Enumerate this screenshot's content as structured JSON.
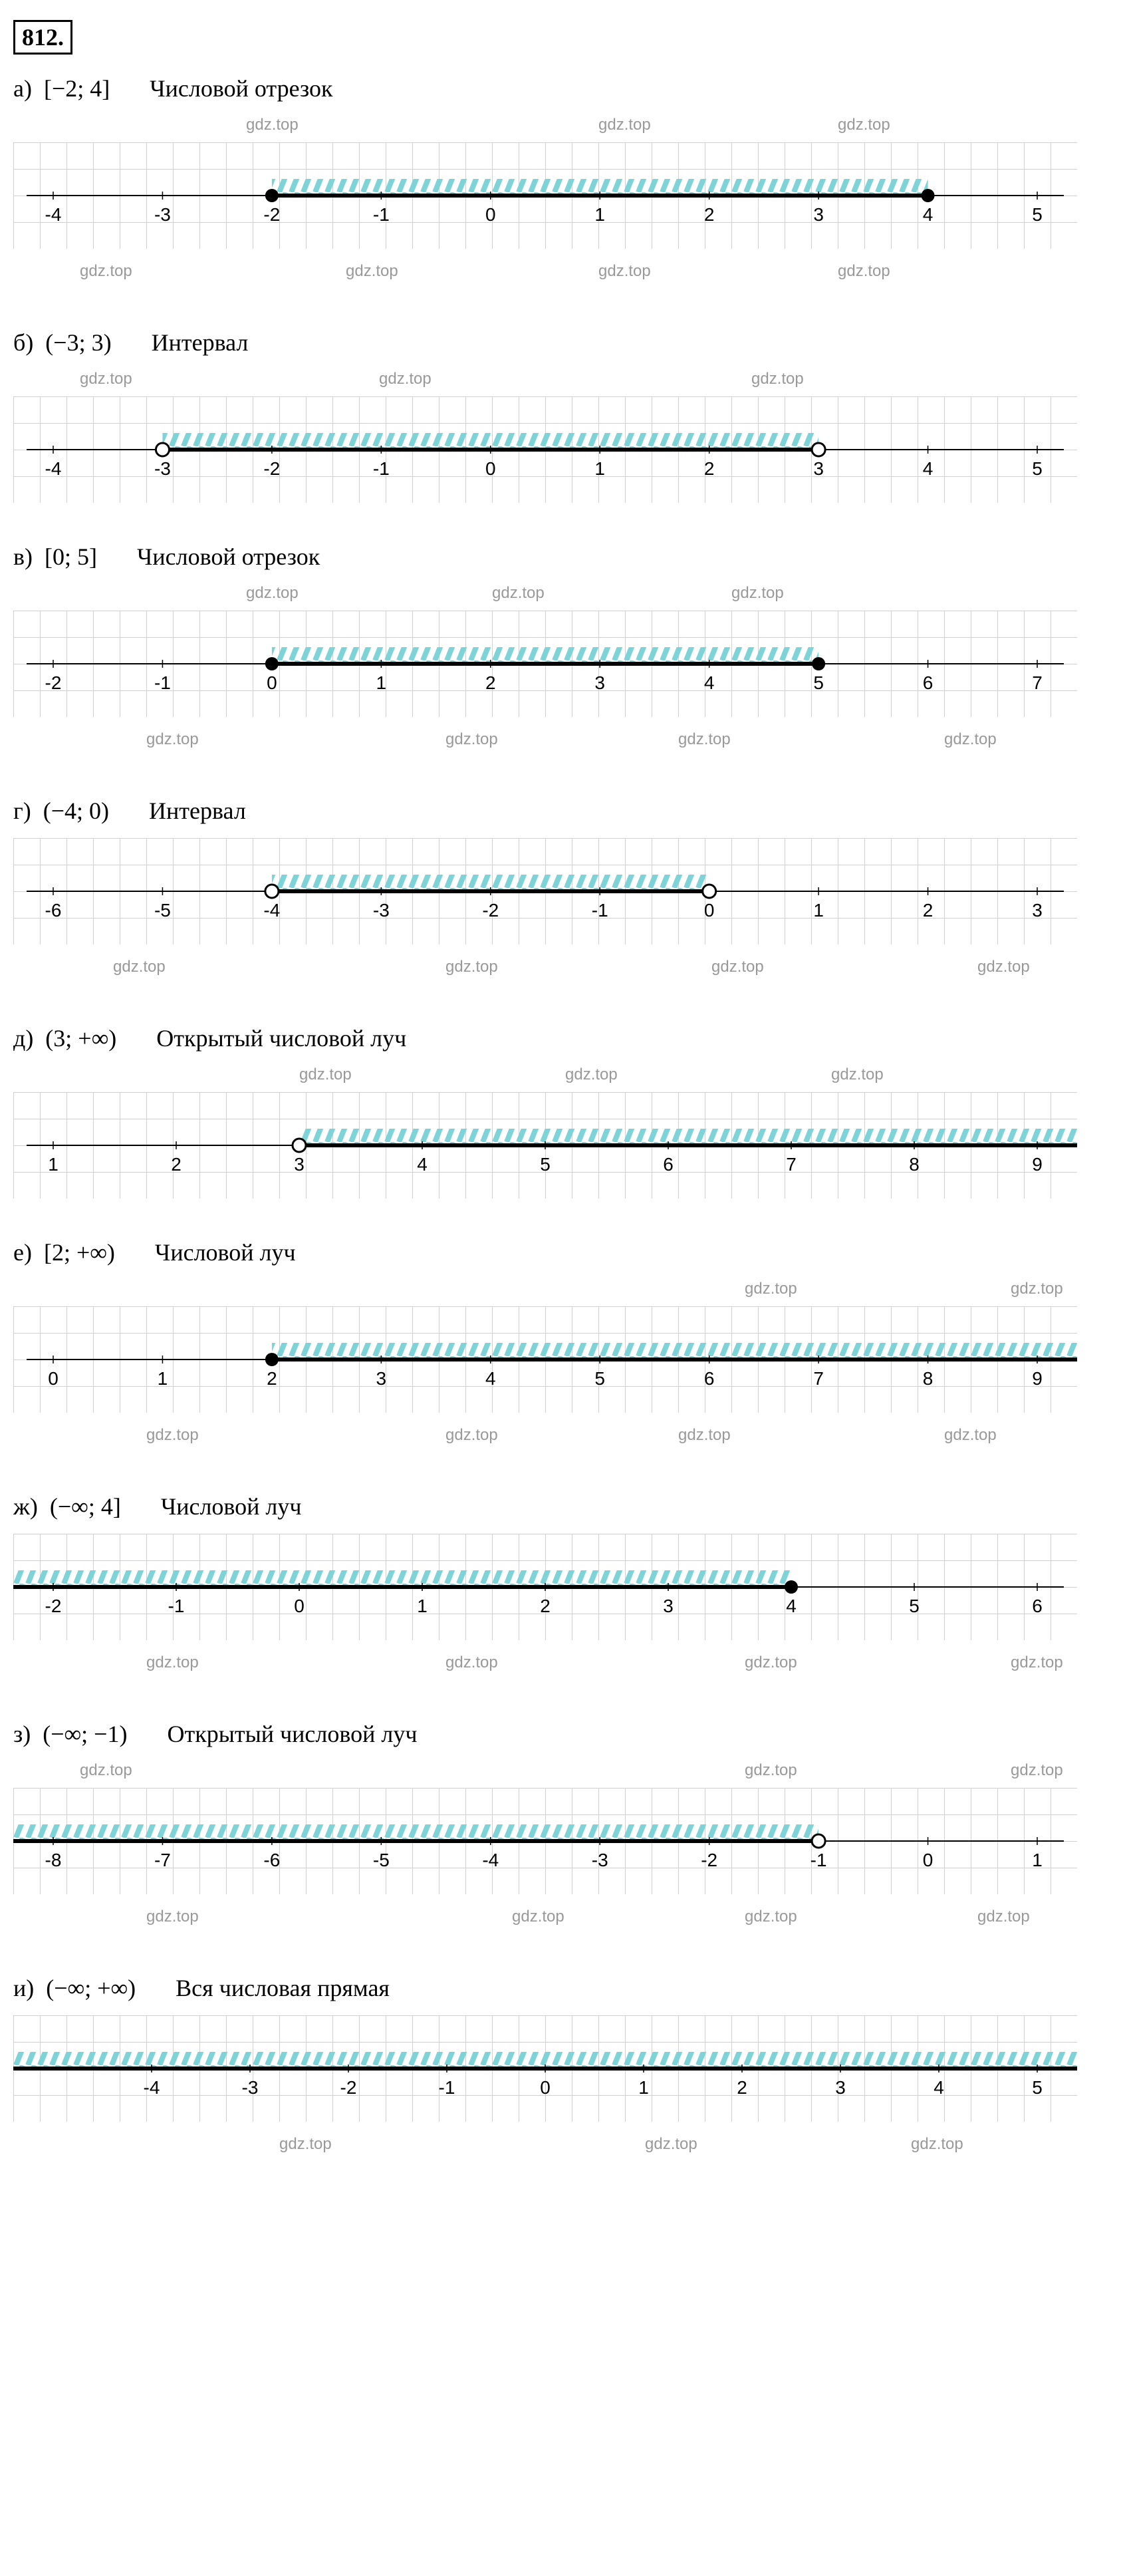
{
  "problemNumber": "812.",
  "watermarkText": "gdz.top",
  "hatchColor": "#7dd3d8",
  "subproblems": [
    {
      "letter": "а)",
      "interval": "[−2; 4]",
      "name": "Числовой отрезок",
      "axisStart": -4,
      "axisEnd": 5,
      "ticks": [
        -4,
        -3,
        -2,
        -1,
        0,
        1,
        2,
        3,
        4,
        5
      ],
      "rangeStart": -2,
      "rangeEnd": 4,
      "startClosed": true,
      "endClosed": true,
      "hatchToLeft": false,
      "hatchToRight": false,
      "watermarksAbove": [
        350,
        880,
        1240
      ],
      "watermarksBelow": [
        100,
        500,
        880,
        1240
      ]
    },
    {
      "letter": "б)",
      "interval": "(−3; 3)",
      "name": "Интервал",
      "axisStart": -4,
      "axisEnd": 5,
      "ticks": [
        -4,
        -3,
        -2,
        -1,
        0,
        1,
        2,
        3,
        4,
        5
      ],
      "rangeStart": -3,
      "rangeEnd": 3,
      "startClosed": false,
      "endClosed": false,
      "hatchToLeft": false,
      "hatchToRight": false,
      "watermarksAbove": [
        100,
        550,
        1110
      ],
      "watermarksBelow": []
    },
    {
      "letter": "в)",
      "interval": "[0; 5]",
      "name": "Числовой отрезок",
      "axisStart": -2,
      "axisEnd": 7,
      "ticks": [
        -2,
        -1,
        0,
        1,
        2,
        3,
        4,
        5,
        6,
        7
      ],
      "rangeStart": 0,
      "rangeEnd": 5,
      "startClosed": true,
      "endClosed": true,
      "hatchToLeft": false,
      "hatchToRight": false,
      "watermarksAbove": [
        350,
        720,
        1080
      ],
      "watermarksBelow": [
        200,
        650,
        1000,
        1400
      ]
    },
    {
      "letter": "г)",
      "interval": "(−4; 0)",
      "name": "Интервал",
      "axisStart": -6,
      "axisEnd": 3,
      "ticks": [
        -6,
        -5,
        -4,
        -3,
        -2,
        -1,
        0,
        1,
        2,
        3
      ],
      "rangeStart": -4,
      "rangeEnd": 0,
      "startClosed": false,
      "endClosed": false,
      "hatchToLeft": false,
      "hatchToRight": false,
      "watermarksAbove": [],
      "watermarksBelow": [
        150,
        650,
        1050,
        1450
      ]
    },
    {
      "letter": "д)",
      "interval": "(3; +∞)",
      "name": "Открытый числовой луч",
      "axisStart": 1,
      "axisEnd": 9,
      "ticks": [
        1,
        2,
        3,
        4,
        5,
        6,
        7,
        8,
        9
      ],
      "rangeStart": 3,
      "rangeEnd": 9.6,
      "startClosed": false,
      "endClosed": null,
      "hatchToLeft": false,
      "hatchToRight": true,
      "watermarksAbove": [
        430,
        830,
        1230
      ],
      "watermarksBelow": []
    },
    {
      "letter": "е)",
      "interval": "[2; +∞)",
      "name": "Числовой луч",
      "axisStart": 0,
      "axisEnd": 9,
      "ticks": [
        0,
        1,
        2,
        3,
        4,
        5,
        6,
        7,
        8,
        9
      ],
      "rangeStart": 2,
      "rangeEnd": 9.6,
      "startClosed": true,
      "endClosed": null,
      "hatchToLeft": false,
      "hatchToRight": true,
      "watermarksAbove": [
        1100,
        1500
      ],
      "watermarksBelow": [
        200,
        650,
        1000,
        1400
      ]
    },
    {
      "letter": "ж)",
      "interval": "(−∞; 4]",
      "name": "Числовой луч",
      "axisStart": -2,
      "axisEnd": 6,
      "ticks": [
        -2,
        -1,
        0,
        1,
        2,
        3,
        4,
        5,
        6
      ],
      "rangeStart": -2.6,
      "rangeEnd": 4,
      "startClosed": null,
      "endClosed": true,
      "hatchToLeft": true,
      "hatchToRight": false,
      "watermarksAbove": [],
      "watermarksBelow": [
        200,
        650,
        1100,
        1500
      ]
    },
    {
      "letter": "з)",
      "interval": "(−∞; −1)",
      "name": "Открытый числовой луч",
      "axisStart": -8,
      "axisEnd": 1,
      "ticks": [
        -8,
        -7,
        -6,
        -5,
        -4,
        -3,
        -2,
        -1,
        0,
        1
      ],
      "rangeStart": -8.6,
      "rangeEnd": -1,
      "startClosed": null,
      "endClosed": false,
      "hatchToLeft": true,
      "hatchToRight": false,
      "watermarksAbove": [
        100,
        1100,
        1500
      ],
      "watermarksBelow": [
        200,
        750,
        1100,
        1450
      ]
    },
    {
      "letter": "и)",
      "interval": "(−∞; +∞)",
      "name": "Вся числовая прямая",
      "axisStart": -5,
      "axisEnd": 5,
      "ticks": [
        -4,
        -3,
        -2,
        -1,
        0,
        1,
        2,
        3,
        4,
        5
      ],
      "rangeStart": -5.5,
      "rangeEnd": 5.5,
      "startClosed": null,
      "endClosed": null,
      "hatchToLeft": true,
      "hatchToRight": true,
      "watermarksAbove": [],
      "watermarksBelow": [
        400,
        950,
        1350
      ]
    }
  ]
}
